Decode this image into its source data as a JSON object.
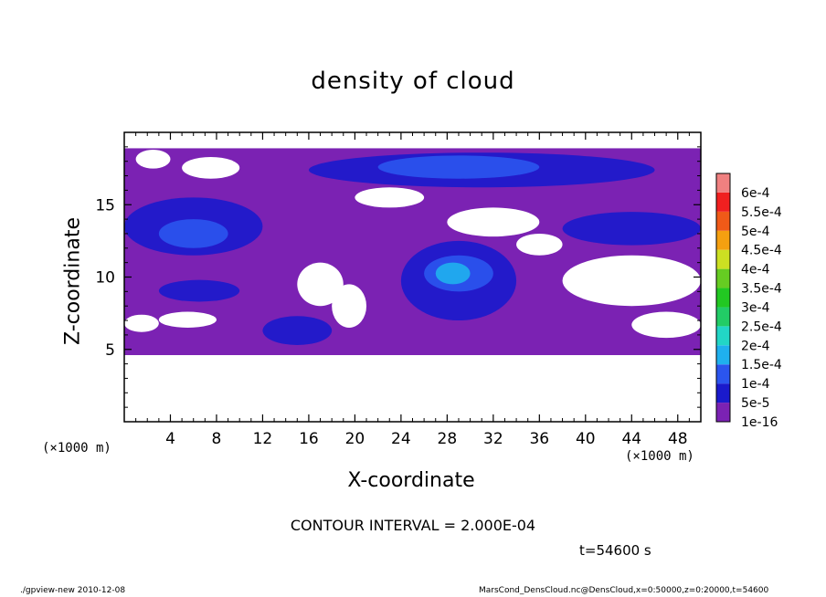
{
  "chart_data": {
    "type": "heatmap",
    "title": "density of cloud",
    "xlabel": "X-coordinate",
    "ylabel": "Z-coordinate",
    "x_unit": "(×1000 m)",
    "y_unit": "(×1000 m)",
    "xlim": [
      0,
      50
    ],
    "ylim": [
      0,
      20
    ],
    "x_ticks": [
      4,
      8,
      12,
      16,
      20,
      24,
      28,
      32,
      36,
      40,
      44,
      48
    ],
    "y_ticks": [
      5,
      10,
      15
    ],
    "colorbar": [
      {
        "label": "1e-16",
        "color": "#7b22b3"
      },
      {
        "label": "5e-5",
        "color": "#1a1acc"
      },
      {
        "label": "1e-4",
        "color": "#2b55ee"
      },
      {
        "label": "1.5e-4",
        "color": "#1fb0ee"
      },
      {
        "label": "2e-4",
        "color": "#22d6c6"
      },
      {
        "label": "2.5e-4",
        "color": "#22cc66"
      },
      {
        "label": "3e-4",
        "color": "#22c822"
      },
      {
        "label": "3.5e-4",
        "color": "#66cc22"
      },
      {
        "label": "4e-4",
        "color": "#cce022"
      },
      {
        "label": "4.5e-4",
        "color": "#f5a010"
      },
      {
        "label": "5e-4",
        "color": "#f05a18"
      },
      {
        "label": "5.5e-4",
        "color": "#f02020"
      },
      {
        "label": "6e-4",
        "color": "#f08080"
      }
    ],
    "contour_interval": "CONTOUR INTERVAL = 2.000E-04",
    "time": "t=54600 s",
    "regions": [
      {
        "level": 0,
        "x": [
          0,
          50
        ],
        "z": [
          4.6,
          18.9
        ],
        "note": "purple cloud layer"
      },
      {
        "level": 0,
        "hole": true,
        "x": [
          0,
          50
        ],
        "z": [
          0,
          4.6
        ]
      },
      {
        "level": 1,
        "x": [
          16,
          46
        ],
        "z": [
          16.2,
          18.6
        ]
      },
      {
        "level": 2,
        "x": [
          22,
          36
        ],
        "z": [
          16.8,
          18.4
        ]
      },
      {
        "level": 1,
        "x": [
          0,
          12
        ],
        "z": [
          11.5,
          15.5
        ]
      },
      {
        "level": 2,
        "x": [
          3,
          9
        ],
        "z": [
          12,
          14
        ]
      },
      {
        "level": 1,
        "x": [
          24,
          34
        ],
        "z": [
          7,
          12.5
        ]
      },
      {
        "level": 2,
        "x": [
          26,
          32
        ],
        "z": [
          9,
          11.5
        ]
      },
      {
        "level": 3,
        "x": [
          27,
          30
        ],
        "z": [
          9.5,
          11
        ]
      },
      {
        "level": 1,
        "x": [
          3,
          10
        ],
        "z": [
          8.3,
          9.8
        ]
      },
      {
        "level": 1,
        "x": [
          12,
          18
        ],
        "z": [
          5.3,
          7.3
        ]
      },
      {
        "level": 1,
        "x": [
          38,
          50
        ],
        "z": [
          12.2,
          14.5
        ]
      }
    ]
  },
  "footer_left": "./gpview-new   2010-12-08",
  "footer_right": "MarsCond_DensCloud.nc@DensCloud,x=0:50000,z=0:20000,t=54600"
}
